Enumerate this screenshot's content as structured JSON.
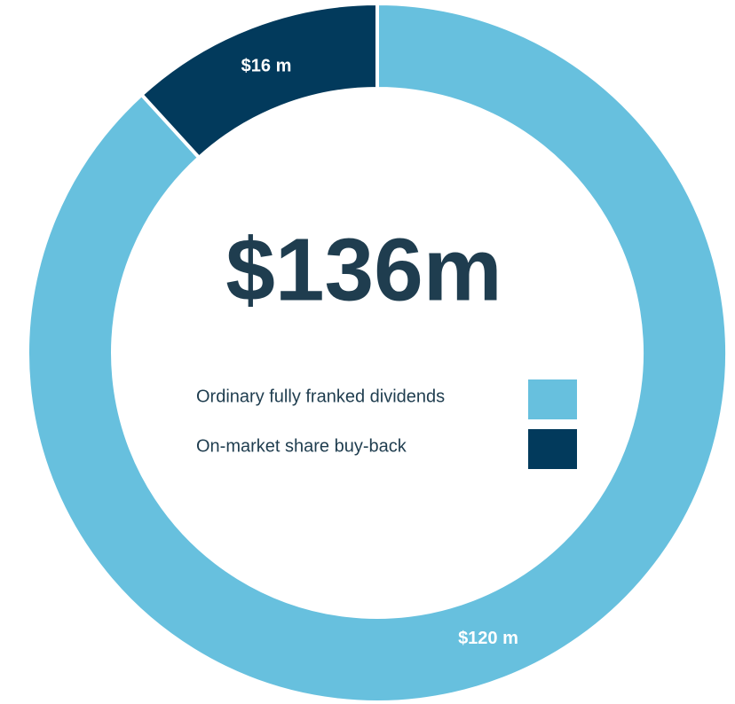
{
  "chart_data": {
    "type": "donut",
    "center_label": "$136m",
    "categories": [
      "Ordinary fully franked dividends",
      "On-market share buy-back"
    ],
    "values": [
      120,
      16
    ],
    "value_labels": [
      "$120 m",
      "$16 m"
    ],
    "colors": [
      "#67c0de",
      "#023a5c"
    ],
    "legend": "center"
  }
}
